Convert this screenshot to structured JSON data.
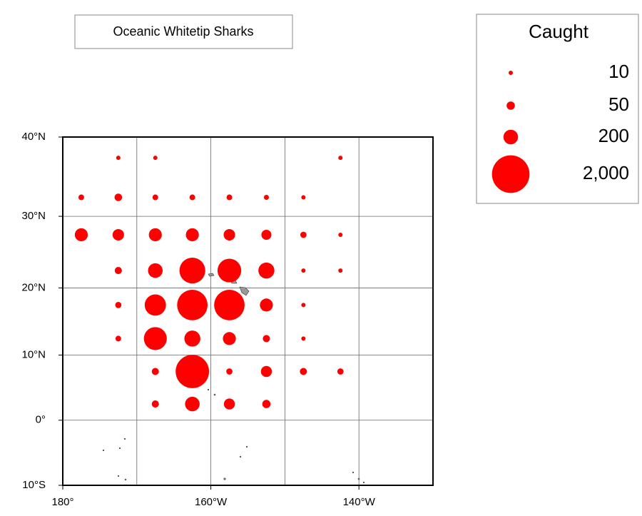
{
  "chart_data": {
    "type": "bubble-map",
    "title": "Oceanic Whitetip Sharks",
    "projection": "mercator",
    "color": "#ff0000",
    "xlim": [
      -180,
      -130
    ],
    "ylim": [
      -10,
      40
    ],
    "xticks": [
      {
        "value": -180,
        "label": "180°"
      },
      {
        "value": -160,
        "label": "160°W"
      },
      {
        "value": -140,
        "label": "140°W"
      }
    ],
    "yticks": [
      {
        "value": 40,
        "label": "40°N"
      },
      {
        "value": 30,
        "label": "30°N"
      },
      {
        "value": 20,
        "label": "20°N"
      },
      {
        "value": 10,
        "label": "10°N"
      },
      {
        "value": 0,
        "label": "0°"
      },
      {
        "value": -10,
        "label": "10°S"
      }
    ],
    "xgrid": [
      -170,
      -160,
      -150,
      -140
    ],
    "ygrid": [
      30,
      20,
      10,
      0
    ],
    "legend": {
      "title": "Caught",
      "items": [
        {
          "value": 10,
          "label": "10"
        },
        {
          "value": 50,
          "label": "50"
        },
        {
          "value": 200,
          "label": "200"
        },
        {
          "value": 2000,
          "label": "2,000"
        }
      ]
    },
    "points": {
      "lon": [
        -172.5,
        -167.5,
        -142.5,
        -177.5,
        -172.5,
        -167.5,
        -162.5,
        -157.5,
        -152.5,
        -147.5,
        -177.5,
        -172.5,
        -167.5,
        -162.5,
        -157.5,
        -152.5,
        -147.5,
        -142.5,
        -172.5,
        -167.5,
        -162.5,
        -157.5,
        -152.5,
        -147.5,
        -142.5,
        -172.5,
        -167.5,
        -162.5,
        -157.5,
        -152.5,
        -147.5,
        -172.5,
        -167.5,
        -162.5,
        -157.5,
        -152.5,
        -147.5,
        -167.5,
        -162.5,
        -157.5,
        -152.5,
        -147.5,
        -142.5,
        -167.5,
        -162.5,
        -157.5,
        -152.5
      ],
      "lat": [
        37.5,
        37.5,
        37.5,
        32.5,
        32.5,
        32.5,
        32.5,
        32.5,
        32.5,
        32.5,
        27.5,
        27.5,
        27.5,
        27.5,
        27.5,
        27.5,
        27.5,
        27.5,
        22.5,
        22.5,
        22.5,
        22.5,
        22.5,
        22.5,
        22.5,
        17.5,
        17.5,
        17.5,
        17.5,
        17.5,
        17.5,
        12.5,
        12.5,
        12.5,
        12.5,
        12.5,
        12.5,
        7.5,
        7.5,
        7.5,
        7.5,
        7.5,
        7.5,
        2.5,
        2.5,
        2.5,
        2.5
      ],
      "caught": [
        10,
        10,
        10,
        20,
        40,
        20,
        20,
        20,
        15,
        10,
        150,
        110,
        150,
        150,
        110,
        80,
        25,
        10,
        35,
        200,
        800,
        650,
        250,
        10,
        10,
        25,
        500,
        1200,
        1200,
        150,
        10,
        20,
        600,
        250,
        150,
        35,
        10,
        35,
        1500,
        25,
        100,
        35,
        25,
        35,
        200,
        100,
        50
      ]
    }
  }
}
